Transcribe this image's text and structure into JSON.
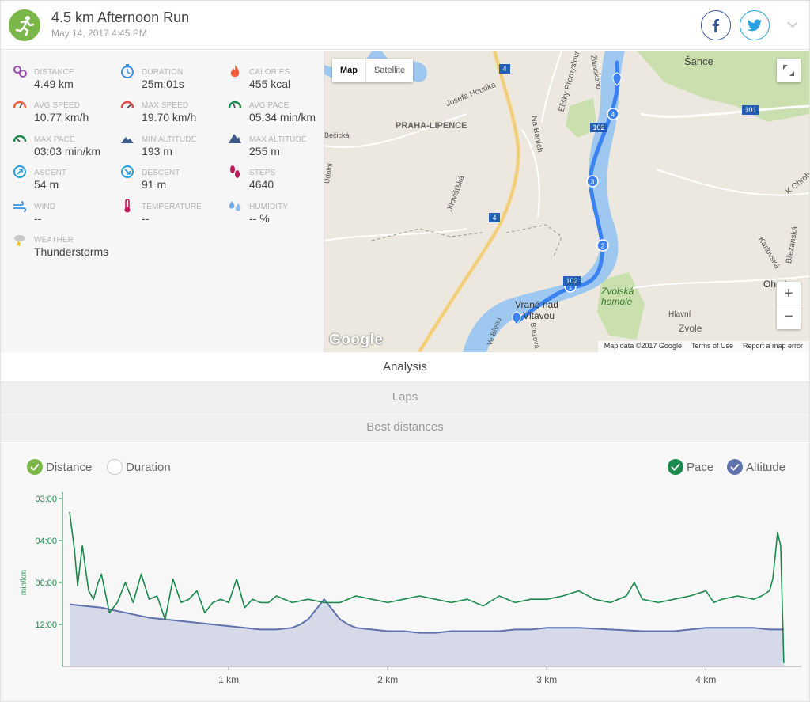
{
  "header": {
    "title": "4.5 km Afternoon Run",
    "subtitle": "May 14, 2017 4:45 PM"
  },
  "stats": [
    {
      "label": "DISTANCE",
      "value": "4.49 km",
      "icon": "distance-icon"
    },
    {
      "label": "DURATION",
      "value": "25m:01s",
      "icon": "duration-icon"
    },
    {
      "label": "CALORIES",
      "value": "455 kcal",
      "icon": "calories-icon"
    },
    {
      "label": "AVG SPEED",
      "value": "10.77 km/h",
      "icon": "avg-speed-icon"
    },
    {
      "label": "MAX SPEED",
      "value": "19.70 km/h",
      "icon": "max-speed-icon"
    },
    {
      "label": "AVG PACE",
      "value": "05:34 min/km",
      "icon": "avg-pace-icon"
    },
    {
      "label": "MAX PACE",
      "value": "03:03 min/km",
      "icon": "max-pace-icon"
    },
    {
      "label": "MIN ALTITUDE",
      "value": "193 m",
      "icon": "min-altitude-icon"
    },
    {
      "label": "MAX ALTITUDE",
      "value": "255 m",
      "icon": "max-altitude-icon"
    },
    {
      "label": "ASCENT",
      "value": "54 m",
      "icon": "ascent-icon"
    },
    {
      "label": "DESCENT",
      "value": "91 m",
      "icon": "descent-icon"
    },
    {
      "label": "STEPS",
      "value": "4640",
      "icon": "steps-icon"
    },
    {
      "label": "WIND",
      "value": "--",
      "icon": "wind-icon"
    },
    {
      "label": "TEMPERATURE",
      "value": "--",
      "icon": "temperature-icon"
    },
    {
      "label": "HUMIDITY",
      "value": "-- %",
      "icon": "humidity-icon"
    },
    {
      "label": "WEATHER",
      "value": "Thunderstorms",
      "icon": "weather-icon"
    }
  ],
  "map": {
    "type_map": "Map",
    "type_satellite": "Satellite",
    "zoom_in": "+",
    "zoom_out": "−",
    "logo": "Google",
    "footer": [
      "Map data ©2017 Google",
      "Terms of Use",
      "Report a map error"
    ],
    "places": [
      {
        "text": "PRAHA-LIPENCE"
      },
      {
        "text": "Šance"
      },
      {
        "text": "Vrané nad"
      },
      {
        "text": "Vltavou"
      },
      {
        "text": "Zvolská"
      },
      {
        "text": "homole"
      },
      {
        "text": "Ohrobec"
      },
      {
        "text": "Josefa Houdka"
      },
      {
        "text": "Na Baních"
      },
      {
        "text": "Jílovišťská"
      },
      {
        "text": "Žitavského"
      },
      {
        "text": "Elišky Přemyslovny"
      },
      {
        "text": "Karlovská"
      },
      {
        "text": "Březanská"
      },
      {
        "text": "K Ohrobci"
      },
      {
        "text": "Hlavní"
      },
      {
        "text": "Zvole"
      },
      {
        "text": "Bečická"
      },
      {
        "text": "Údolní"
      },
      {
        "text": "Březová"
      },
      {
        "text": "Ve Břehu"
      }
    ],
    "road_badges": [
      "4",
      "4",
      "102",
      "102",
      "101"
    ],
    "markers": [
      "1",
      "2",
      "3",
      "4"
    ]
  },
  "tabs": [
    {
      "label": "Analysis",
      "active": true
    },
    {
      "label": "Laps",
      "active": false
    },
    {
      "label": "Best distances",
      "active": false
    }
  ],
  "chart_toggles": {
    "distance": "Distance",
    "duration": "Duration",
    "pace": "Pace",
    "altitude": "Altitude"
  },
  "colors": {
    "pace": "#1a8a4c",
    "altitude": "#5f72ad",
    "altitude_fill": "#d5d9e8",
    "accent": "#7ab648",
    "route": "#3b82f0",
    "water": "#9ec8f0"
  },
  "chart_data": {
    "type": "line",
    "xlabel": "",
    "ylabel": "min/km",
    "x_ticks": [
      "1 km",
      "2 km",
      "3 km",
      "4 km"
    ],
    "x_tick_values": [
      1,
      2,
      3,
      4
    ],
    "xlim": [
      0,
      4.55
    ],
    "y_ticks": [
      "03:00",
      "04:00",
      "06:00",
      "12:00"
    ],
    "series": [
      {
        "name": "Pace",
        "x": [
          0.0,
          0.03,
          0.05,
          0.08,
          0.1,
          0.12,
          0.15,
          0.18,
          0.2,
          0.25,
          0.3,
          0.35,
          0.4,
          0.45,
          0.5,
          0.55,
          0.6,
          0.65,
          0.7,
          0.75,
          0.8,
          0.85,
          0.9,
          0.95,
          1.0,
          1.05,
          1.1,
          1.15,
          1.2,
          1.25,
          1.3,
          1.35,
          1.4,
          1.5,
          1.6,
          1.7,
          1.8,
          1.9,
          2.0,
          2.1,
          2.2,
          2.3,
          2.4,
          2.5,
          2.6,
          2.7,
          2.8,
          2.9,
          3.0,
          3.1,
          3.2,
          3.3,
          3.4,
          3.5,
          3.55,
          3.6,
          3.7,
          3.8,
          3.9,
          4.0,
          4.05,
          4.1,
          4.2,
          4.3,
          4.35,
          4.4,
          4.42,
          4.44,
          4.45,
          4.47,
          4.49
        ],
        "y_frac": [
          0.08,
          0.3,
          0.52,
          0.28,
          0.42,
          0.55,
          0.6,
          0.5,
          0.45,
          0.68,
          0.62,
          0.5,
          0.62,
          0.45,
          0.6,
          0.58,
          0.72,
          0.48,
          0.62,
          0.6,
          0.55,
          0.68,
          0.62,
          0.6,
          0.62,
          0.48,
          0.65,
          0.6,
          0.62,
          0.62,
          0.58,
          0.6,
          0.62,
          0.6,
          0.62,
          0.62,
          0.58,
          0.6,
          0.62,
          0.6,
          0.58,
          0.6,
          0.62,
          0.6,
          0.64,
          0.58,
          0.62,
          0.6,
          0.6,
          0.58,
          0.55,
          0.6,
          0.62,
          0.58,
          0.5,
          0.6,
          0.62,
          0.6,
          0.58,
          0.55,
          0.62,
          0.6,
          0.58,
          0.6,
          0.58,
          0.55,
          0.48,
          0.3,
          0.2,
          0.28,
          0.98
        ]
      },
      {
        "name": "Altitude",
        "x": [
          0.0,
          0.1,
          0.2,
          0.3,
          0.4,
          0.5,
          0.6,
          0.7,
          0.8,
          0.9,
          1.0,
          1.1,
          1.2,
          1.3,
          1.4,
          1.45,
          1.5,
          1.55,
          1.6,
          1.65,
          1.7,
          1.75,
          1.8,
          1.9,
          2.0,
          2.1,
          2.2,
          2.3,
          2.4,
          2.5,
          2.6,
          2.7,
          2.8,
          2.9,
          3.0,
          3.2,
          3.4,
          3.6,
          3.8,
          3.9,
          4.0,
          4.1,
          4.2,
          4.3,
          4.4,
          4.45,
          4.49
        ],
        "y_frac": [
          0.63,
          0.64,
          0.65,
          0.67,
          0.69,
          0.71,
          0.72,
          0.73,
          0.74,
          0.75,
          0.76,
          0.77,
          0.78,
          0.78,
          0.77,
          0.75,
          0.72,
          0.66,
          0.6,
          0.66,
          0.72,
          0.75,
          0.77,
          0.78,
          0.79,
          0.79,
          0.8,
          0.8,
          0.79,
          0.79,
          0.79,
          0.79,
          0.78,
          0.78,
          0.77,
          0.77,
          0.78,
          0.79,
          0.79,
          0.78,
          0.77,
          0.77,
          0.77,
          0.77,
          0.78,
          0.78,
          0.78
        ]
      }
    ]
  }
}
